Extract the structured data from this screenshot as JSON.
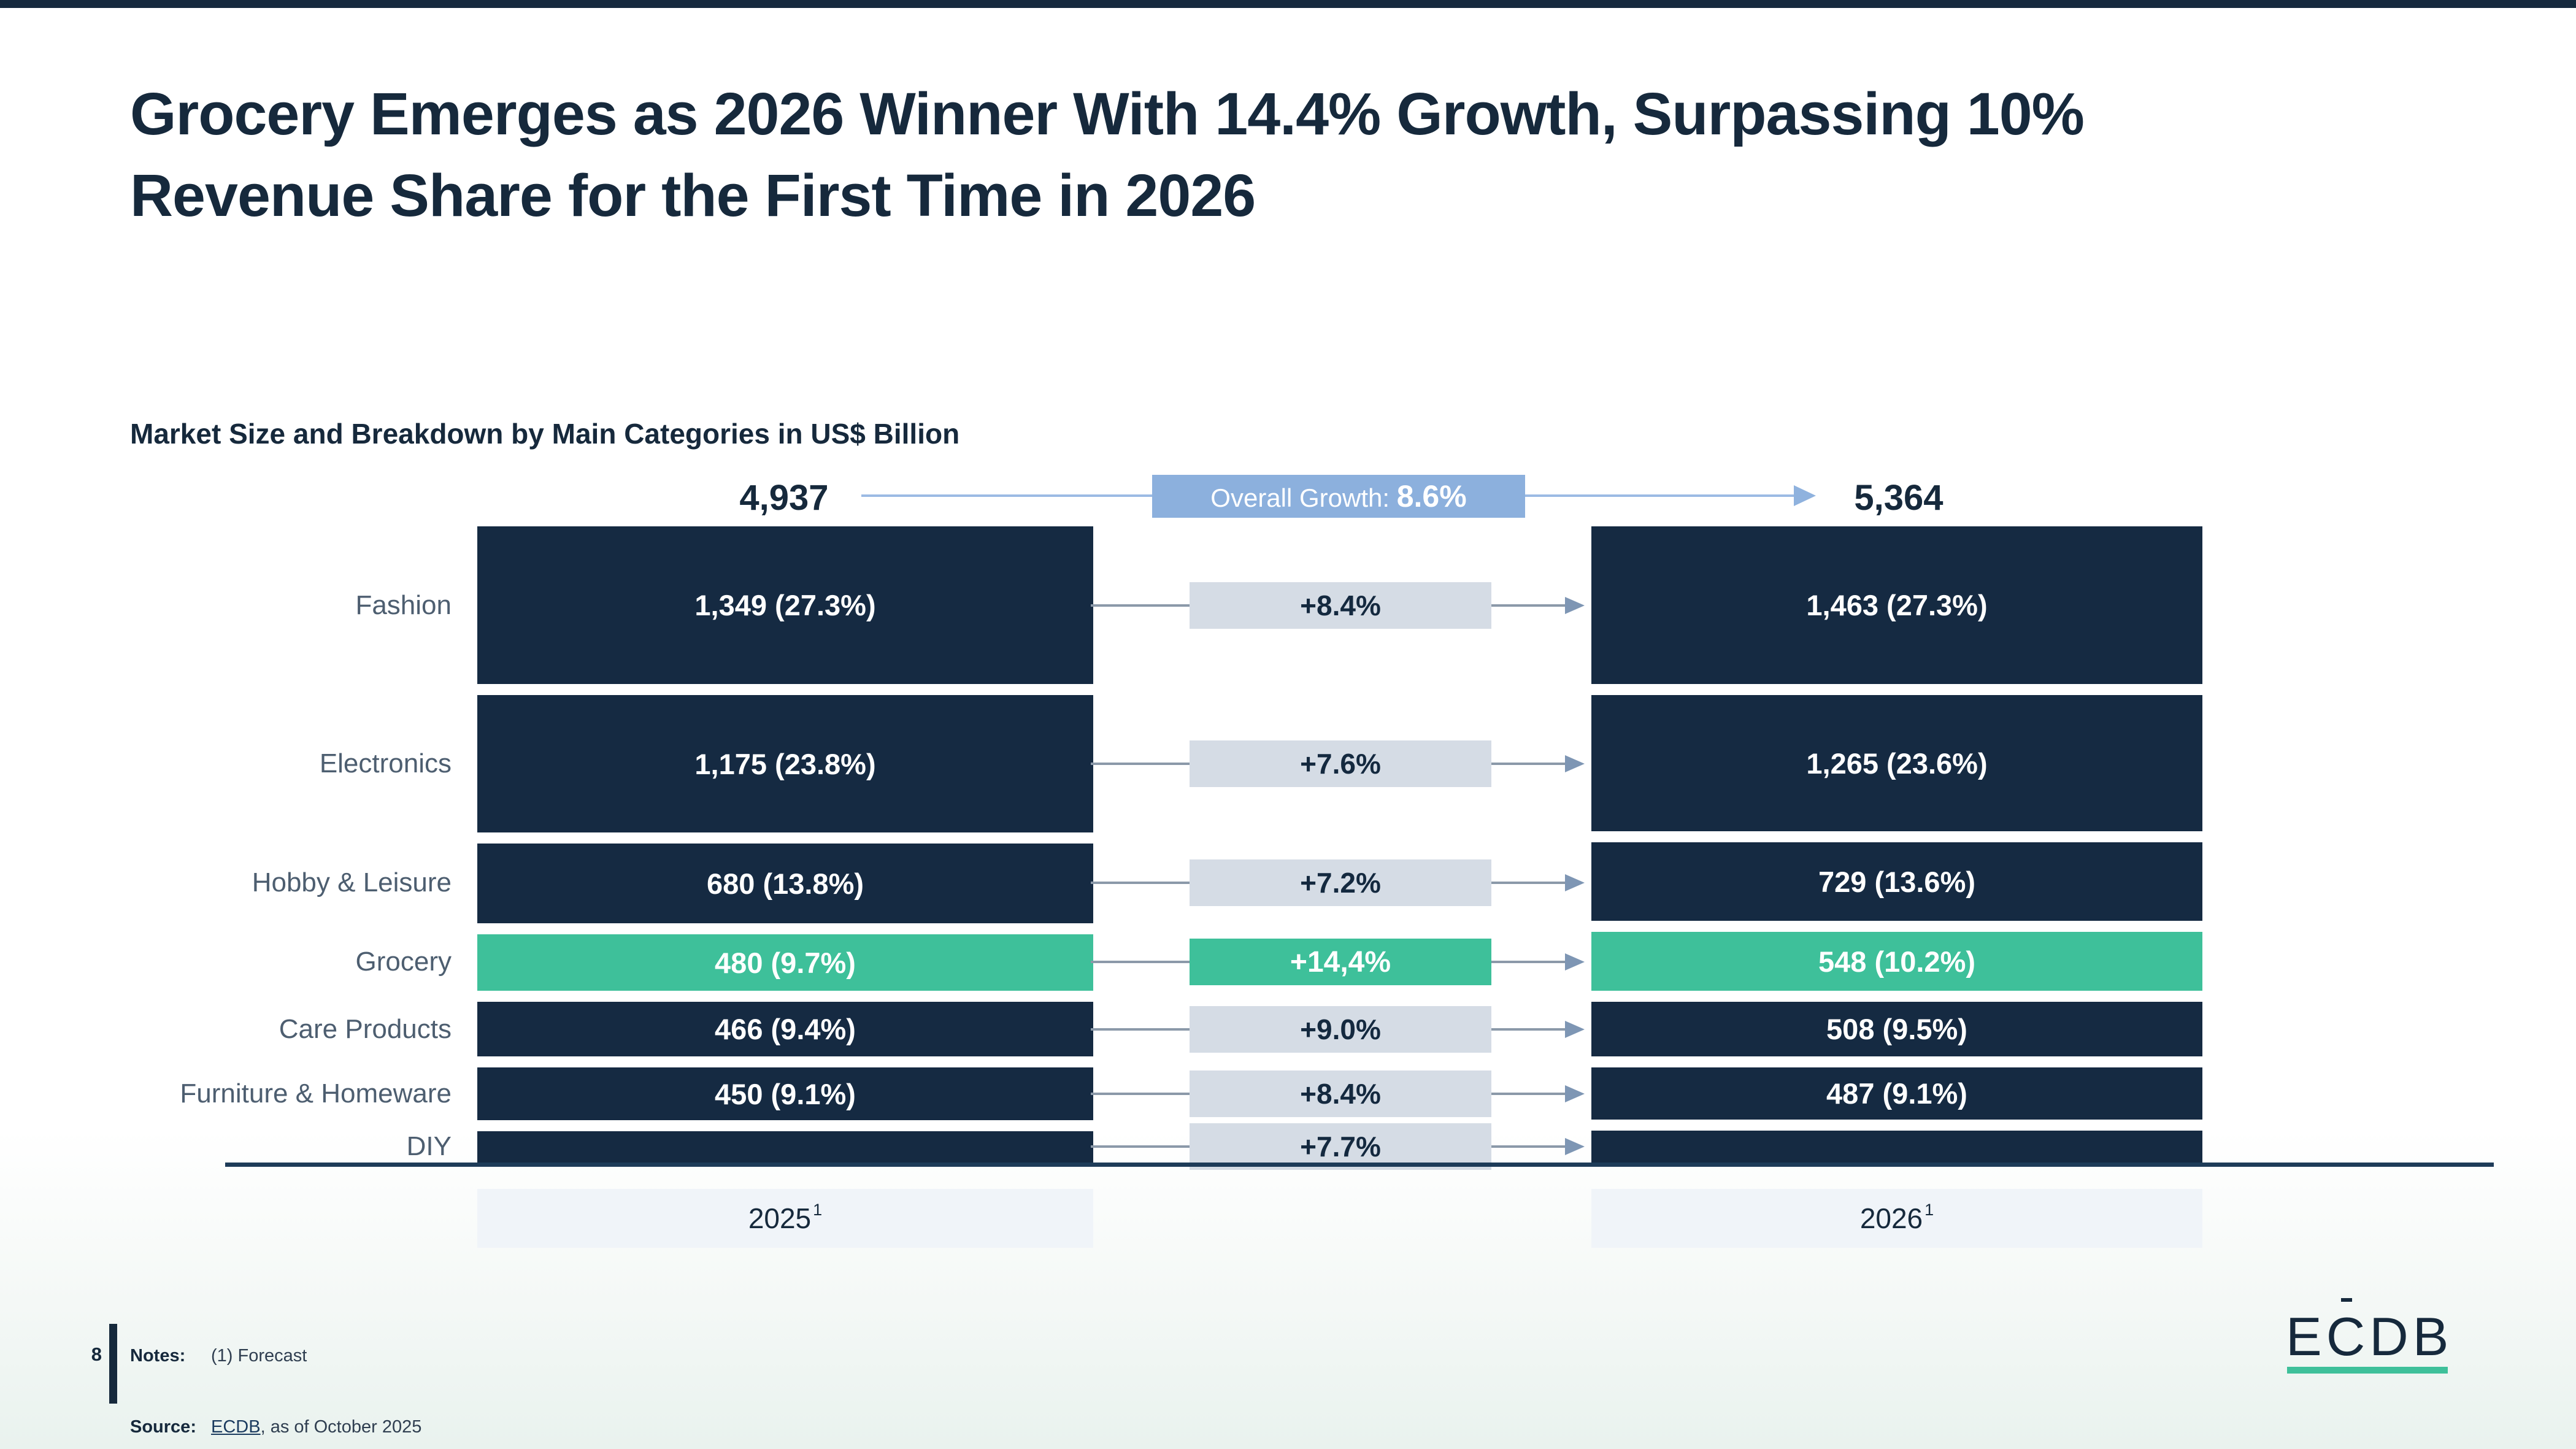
{
  "slide": {
    "title_line1": "Grocery Emerges as 2026 Winner With 14.4% Growth, Surpassing 10%",
    "title_line2": "Revenue Share for the First Time in 2026",
    "page_number": "8",
    "footer": {
      "notes_label": "Notes:",
      "notes_text": "(1) Forecast",
      "source_label": "Source:",
      "source_link_text": "ECDB",
      "source_suffix": ", as of October 2025"
    },
    "logo_text": "ECDB"
  },
  "chart_data": {
    "type": "bar",
    "variant": "stacked-category-comparison",
    "title": "Market Size and Breakdown by Main Categories in US$ Billion",
    "unit": "US$ Billion",
    "grid": false,
    "legend_position": "none",
    "columns": [
      {
        "label": "2025",
        "superscript": "1",
        "total": 4937,
        "total_label": "4,937"
      },
      {
        "label": "2026",
        "superscript": "1",
        "total": 5364,
        "total_label": "5,364"
      }
    ],
    "overall_growth_label": "Overall Growth: ",
    "overall_growth_value": "8.6%",
    "categories": [
      {
        "label": "Fashion",
        "value_2025": 1349,
        "label_2025": "1,349 (27.3%)",
        "value_2026": 1463,
        "label_2026": "1,463 (27.3%)",
        "growth": "+8.4%",
        "highlight": false
      },
      {
        "label": "Electronics",
        "value_2025": 1175,
        "label_2025": "1,175 (23.8%)",
        "value_2026": 1265,
        "label_2026": "1,265 (23.6%)",
        "growth": "+7.6%",
        "highlight": false
      },
      {
        "label": "Hobby & Leisure",
        "value_2025": 680,
        "label_2025": "680 (13.8%)",
        "value_2026": 729,
        "label_2026": "729 (13.6%)",
        "growth": "+7.2%",
        "highlight": false
      },
      {
        "label": "Grocery",
        "value_2025": 480,
        "label_2025": "480 (9.7%)",
        "value_2026": 548,
        "label_2026": "548 (10.2%)",
        "growth": "+14,4%",
        "highlight": true
      },
      {
        "label": "Care Products",
        "value_2025": 466,
        "label_2025": "466 (9.4%)",
        "value_2026": 508,
        "label_2026": "508 (9.5%)",
        "growth": "+9.0%",
        "highlight": false
      },
      {
        "label": "Furniture & Homeware",
        "value_2025": 450,
        "label_2025": "450 (9.1%)",
        "value_2026": 487,
        "label_2026": "487 (9.1%)",
        "growth": "+8.4%",
        "highlight": false
      },
      {
        "label": "DIY",
        "value_2025": null,
        "label_2025": "",
        "value_2026": null,
        "label_2026": "",
        "growth": "+7.7%",
        "highlight": false
      }
    ],
    "colors": {
      "bar": "#152A42",
      "bar_highlight": "#3EC09A",
      "bar_text": "#FFFFFF",
      "growth_badge_bg": "#D5DCE5",
      "growth_badge_text": "#14293F",
      "growth_badge_highlight_bg": "#3EC09A",
      "growth_badge_highlight_text": "#FFFFFF",
      "overall_badge_bg": "#8CB0DD",
      "row_connector": "#8B99A9",
      "row_arrow": "#7E96B4",
      "top_arrow": "#8FB2DE",
      "axis_line": "#1E3C59",
      "year_box_bg": "#F0F4F9",
      "title_text": "#16293C",
      "category_label_text": "#4D5E70",
      "logo_accent": "#3EC09A"
    }
  }
}
